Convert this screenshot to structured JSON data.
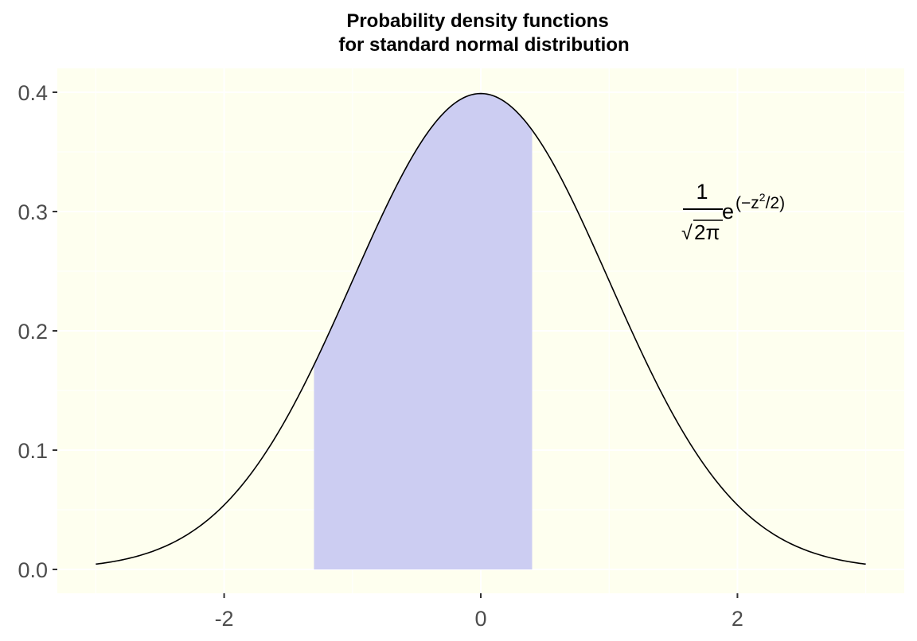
{
  "chart_data": {
    "type": "area",
    "title_line1": "Probability density functions",
    "title_line2": "for standard normal distribution",
    "xlabel": "",
    "ylabel": "",
    "xlim": [
      -3.3,
      3.3
    ],
    "ylim": [
      -0.02,
      0.42
    ],
    "x_ticks": [
      {
        "value": -2,
        "label": "-2"
      },
      {
        "value": 0,
        "label": "0"
      },
      {
        "value": 2,
        "label": "2"
      }
    ],
    "y_ticks": [
      {
        "value": 0.0,
        "label": "0.0"
      },
      {
        "value": 0.1,
        "label": "0.1"
      },
      {
        "value": 0.2,
        "label": "0.2"
      },
      {
        "value": 0.3,
        "label": "0.3"
      },
      {
        "value": 0.4,
        "label": "0.4"
      }
    ],
    "x_minor_ticks": [
      -3,
      -1,
      1,
      3
    ],
    "y_minor_ticks": [
      0.05,
      0.15,
      0.25,
      0.35
    ],
    "curve": {
      "function": "standard normal density",
      "x_range": [
        -3,
        3
      ],
      "color": "#000000"
    },
    "shaded_region": {
      "x_from": -1.3,
      "x_to": 0.4,
      "fill": "#cccdf2"
    },
    "annotation": {
      "numerator": "1",
      "radical": "√",
      "radicand": "2π",
      "base": "e",
      "exp_open": "(",
      "exp_minus": "−",
      "exp_var": "z",
      "exp_pow": "2",
      "exp_rest": "/2)",
      "x": 1.75,
      "y": 0.29
    },
    "panel_background": "#feffef",
    "grid": true,
    "grid_color": "#ffffff",
    "legend": "none"
  }
}
